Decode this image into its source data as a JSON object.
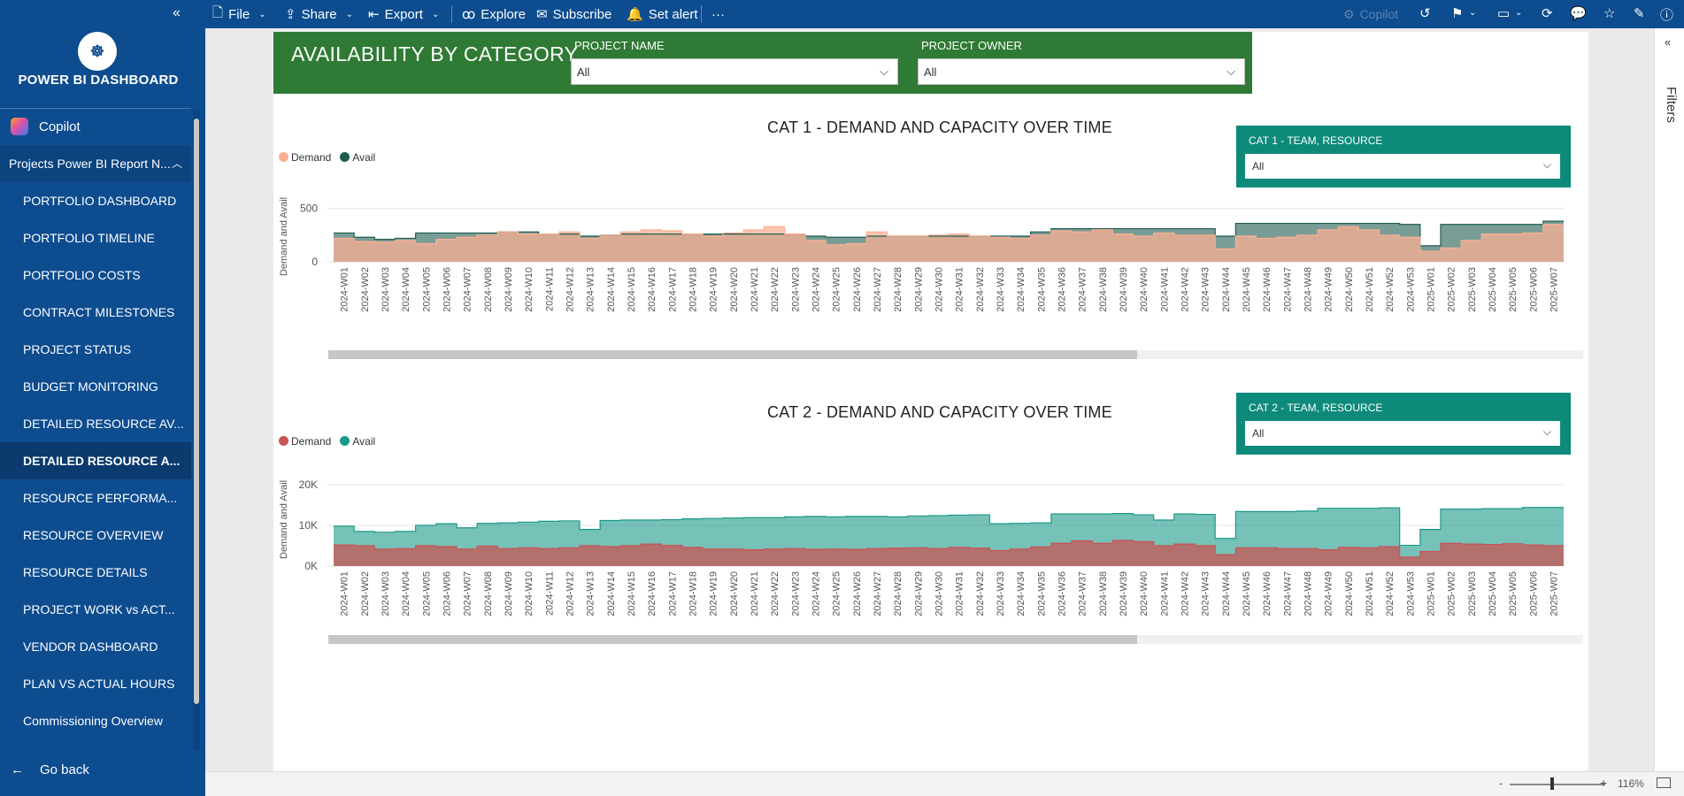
{
  "toolbar": {
    "file": "File",
    "share": "Share",
    "export": "Export",
    "explore": "Explore",
    "subscribe": "Subscribe",
    "set_alert": "Set alert",
    "more": "···",
    "copilot": "Copilot"
  },
  "sidebar": {
    "brand": "POWER BI DASHBOARD",
    "copilot": "Copilot",
    "report": "Projects Power BI Report N...",
    "items": [
      {
        "label": "PORTFOLIO DASHBOARD"
      },
      {
        "label": "PORTFOLIO TIMELINE"
      },
      {
        "label": "PORTFOLIO COSTS"
      },
      {
        "label": "CONTRACT MILESTONES"
      },
      {
        "label": "PROJECT STATUS"
      },
      {
        "label": "BUDGET MONITORING"
      },
      {
        "label": "DETAILED RESOURCE AV..."
      },
      {
        "label": "DETAILED RESOURCE A..."
      },
      {
        "label": "RESOURCE PERFORMA..."
      },
      {
        "label": "RESOURCE OVERVIEW"
      },
      {
        "label": "RESOURCE DETAILS"
      },
      {
        "label": "PROJECT WORK vs ACT..."
      },
      {
        "label": "VENDOR DASHBOARD"
      },
      {
        "label": "PLAN VS ACTUAL HOURS"
      },
      {
        "label": "Commissioning Overview"
      }
    ],
    "active_index": 7,
    "go_back": "Go back"
  },
  "header": {
    "title": "AVAILABILITY BY CATEGORY",
    "project_name_label": "PROJECT NAME",
    "project_name_value": "All",
    "project_owner_label": "PROJECT OWNER",
    "project_owner_value": "All"
  },
  "cat1_slicer": {
    "label": "CAT 1 - TEAM, RESOURCE",
    "value": "All"
  },
  "cat2_slicer": {
    "label": "CAT 2 - TEAM, RESOURCE",
    "value": "All"
  },
  "filters": {
    "label": "Filters"
  },
  "zoom": {
    "minus": "-",
    "plus": "+",
    "percent": "116%"
  },
  "colors": {
    "cat1_demand": "#fbb093",
    "cat1_avail": "#1f5c50",
    "cat2_demand": "#c85454",
    "cat2_avail": "#1a9a88",
    "header_green": "#2f7a34",
    "teal": "#0e8a7a",
    "nav_blue": "#0d4c8f"
  },
  "chart_data": [
    {
      "type": "area",
      "title": "CAT 1 - DEMAND AND CAPACITY OVER TIME",
      "ylabel": "Demand and Avail",
      "ylim": [
        0,
        580
      ],
      "yticks": [
        0,
        500
      ],
      "ytick_labels": [
        "0",
        "500"
      ],
      "categories": [
        "2024-W01",
        "2024-W02",
        "2024-W03",
        "2024-W04",
        "2024-W05",
        "2024-W06",
        "2024-W07",
        "2024-W08",
        "2024-W09",
        "2024-W10",
        "2024-W11",
        "2024-W12",
        "2024-W13",
        "2024-W14",
        "2024-W15",
        "2024-W16",
        "2024-W17",
        "2024-W18",
        "2024-W19",
        "2024-W20",
        "2024-W21",
        "2024-W22",
        "2024-W23",
        "2024-W24",
        "2024-W25",
        "2024-W26",
        "2024-W27",
        "2024-W28",
        "2024-W29",
        "2024-W30",
        "2024-W31",
        "2024-W32",
        "2024-W33",
        "2024-W34",
        "2024-W35",
        "2024-W36",
        "2024-W37",
        "2024-W38",
        "2024-W39",
        "2024-W40",
        "2024-W41",
        "2024-W42",
        "2024-W43",
        "2024-W44",
        "2024-W45",
        "2024-W46",
        "2024-W47",
        "2024-W48",
        "2024-W49",
        "2024-W50",
        "2024-W51",
        "2024-W52",
        "2024-W53",
        "2025-W01",
        "2025-W02",
        "2025-W03",
        "2025-W04",
        "2025-W05",
        "2025-W06",
        "2025-W07"
      ],
      "series": [
        {
          "name": "Demand",
          "values": [
            220,
            190,
            185,
            200,
            170,
            210,
            230,
            250,
            280,
            260,
            260,
            280,
            220,
            250,
            280,
            300,
            290,
            260,
            240,
            270,
            300,
            330,
            260,
            200,
            160,
            170,
            280,
            240,
            240,
            250,
            260,
            240,
            230,
            220,
            250,
            290,
            280,
            300,
            260,
            240,
            270,
            250,
            250,
            120,
            240,
            220,
            230,
            250,
            300,
            330,
            300,
            250,
            230,
            100,
            130,
            200,
            260,
            260,
            270,
            350
          ],
          "color": "#fbb093"
        },
        {
          "name": "Avail",
          "values": [
            270,
            230,
            210,
            220,
            270,
            270,
            270,
            270,
            280,
            280,
            260,
            260,
            240,
            250,
            260,
            260,
            260,
            260,
            260,
            260,
            260,
            260,
            260,
            240,
            230,
            230,
            240,
            240,
            240,
            240,
            240,
            240,
            240,
            240,
            280,
            310,
            310,
            310,
            310,
            310,
            310,
            310,
            310,
            240,
            360,
            360,
            360,
            360,
            360,
            360,
            360,
            360,
            350,
            150,
            350,
            350,
            350,
            350,
            350,
            380
          ],
          "color": "#1f5c50"
        }
      ],
      "legend": "top-left",
      "grid": true
    },
    {
      "type": "area",
      "title": "CAT 2 - DEMAND AND CAPACITY OVER TIME",
      "ylabel": "Demand and Avail",
      "ylim": [
        0,
        20000
      ],
      "yticks": [
        0,
        10000,
        20000
      ],
      "ytick_labels": [
        "0K",
        "10K",
        "20K"
      ],
      "categories": [
        "2024-W01",
        "2024-W02",
        "2024-W03",
        "2024-W04",
        "2024-W05",
        "2024-W06",
        "2024-W07",
        "2024-W08",
        "2024-W09",
        "2024-W10",
        "2024-W11",
        "2024-W12",
        "2024-W13",
        "2024-W14",
        "2024-W15",
        "2024-W16",
        "2024-W17",
        "2024-W18",
        "2024-W19",
        "2024-W20",
        "2024-W21",
        "2024-W22",
        "2024-W23",
        "2024-W24",
        "2024-W25",
        "2024-W26",
        "2024-W27",
        "2024-W28",
        "2024-W29",
        "2024-W30",
        "2024-W31",
        "2024-W32",
        "2024-W33",
        "2024-W34",
        "2024-W35",
        "2024-W36",
        "2024-W37",
        "2024-W38",
        "2024-W39",
        "2024-W40",
        "2024-W41",
        "2024-W42",
        "2024-W43",
        "2024-W44",
        "2024-W45",
        "2024-W46",
        "2024-W47",
        "2024-W48",
        "2024-W49",
        "2024-W50",
        "2024-W51",
        "2024-W52",
        "2024-W53",
        "2025-W01",
        "2025-W02",
        "2025-W03",
        "2025-W04",
        "2025-W05",
        "2025-W06",
        "2025-W07"
      ],
      "series": [
        {
          "name": "Demand",
          "values": [
            5200,
            5000,
            4200,
            4300,
            5000,
            4800,
            4200,
            4900,
            4300,
            4500,
            4300,
            4500,
            5000,
            4800,
            5000,
            5400,
            5100,
            4600,
            4200,
            4200,
            4000,
            4200,
            4300,
            4100,
            4200,
            4100,
            4300,
            4400,
            4500,
            4300,
            4600,
            4400,
            3800,
            4200,
            4700,
            5600,
            6200,
            5600,
            6300,
            6000,
            5000,
            5400,
            5000,
            2800,
            4500,
            4500,
            4300,
            4300,
            4000,
            4600,
            4500,
            4800,
            2200,
            3600,
            5600,
            5400,
            5300,
            5500,
            5200,
            5000
          ],
          "color": "#c85454"
        },
        {
          "name": "Avail",
          "values": [
            9800,
            8500,
            8300,
            8500,
            10000,
            10400,
            9400,
            10500,
            10600,
            10800,
            11000,
            11100,
            9000,
            11200,
            11300,
            11300,
            11400,
            11600,
            11700,
            11800,
            11900,
            11900,
            12100,
            12200,
            12100,
            12200,
            12200,
            12100,
            12300,
            12400,
            12500,
            12600,
            10400,
            10500,
            10600,
            12800,
            12800,
            12800,
            12900,
            12600,
            11300,
            12800,
            12700,
            6800,
            13400,
            13400,
            13400,
            13500,
            14200,
            14200,
            14200,
            14300,
            5100,
            9000,
            14000,
            14000,
            14100,
            14100,
            14400,
            14400
          ],
          "color": "#1a9a88"
        }
      ],
      "legend": "top-left",
      "grid": true
    }
  ]
}
